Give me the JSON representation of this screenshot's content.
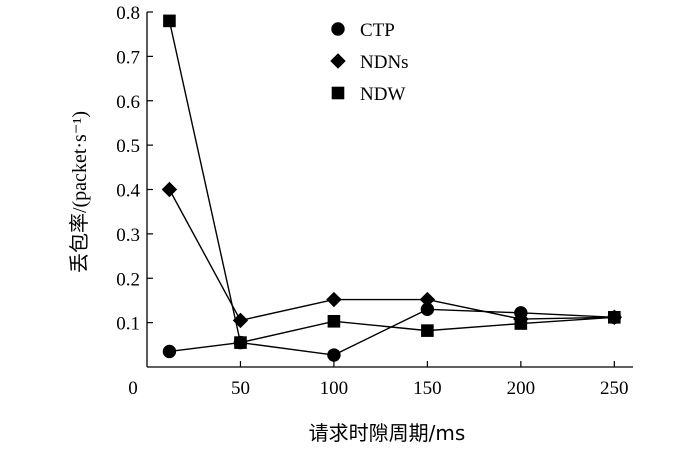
{
  "chart_data": {
    "type": "line",
    "x": [
      12,
      50,
      100,
      150,
      200,
      250
    ],
    "series": [
      {
        "name": "CTP",
        "marker": "circle",
        "values": [
          0.035,
          0.055,
          0.027,
          0.13,
          0.122,
          0.112
        ]
      },
      {
        "name": "NDNs",
        "marker": "diamond",
        "values": [
          0.4,
          0.105,
          0.152,
          0.152,
          0.108,
          0.112
        ]
      },
      {
        "name": "NDW",
        "marker": "square",
        "values": [
          0.78,
          0.055,
          0.103,
          0.082,
          0.098,
          0.112
        ]
      }
    ],
    "xticks": [
      0,
      50,
      100,
      150,
      200,
      250
    ],
    "yticks": [
      0.1,
      0.2,
      0.3,
      0.4,
      0.5,
      0.6,
      0.7,
      0.8
    ],
    "xlim": [
      0,
      260
    ],
    "ylim": [
      0,
      0.8
    ],
    "xlabel": "请求时隙周期/ms",
    "ylabel": "丢包率/(packet·s⁻¹)",
    "title": "",
    "legend_position": "top-center",
    "grid": false,
    "colors": {
      "line": "#000000",
      "marker": "#000000"
    }
  }
}
